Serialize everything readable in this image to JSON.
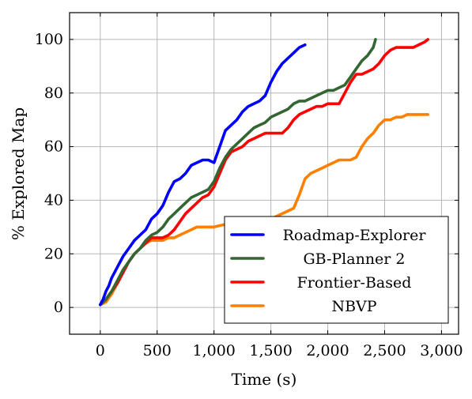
{
  "chart_data": {
    "type": "line",
    "title": "",
    "xlabel": "Time (s)",
    "ylabel": "% Explored Map",
    "xlim": [
      -270,
      3150
    ],
    "ylim": [
      -10,
      110
    ],
    "xticks": [
      0,
      500,
      1000,
      1500,
      2000,
      2500,
      3000
    ],
    "xtick_labels": [
      "0",
      "500",
      "1,000",
      "1,500",
      "2,000",
      "2,500",
      "3,000"
    ],
    "yticks": [
      0,
      20,
      40,
      60,
      80,
      100
    ],
    "ytick_labels": [
      "0",
      "20",
      "40",
      "60",
      "80",
      "100"
    ],
    "grid": true,
    "legend_position": "bottom-right",
    "series": [
      {
        "name": "Roadmap-Explorer",
        "color": "#0000ff",
        "x": [
          0,
          25,
          50,
          75,
          100,
          150,
          200,
          250,
          300,
          350,
          400,
          450,
          500,
          550,
          600,
          650,
          700,
          750,
          800,
          850,
          900,
          950,
          1000,
          1050,
          1100,
          1150,
          1200,
          1250,
          1300,
          1350,
          1400,
          1450,
          1500,
          1550,
          1600,
          1650,
          1700,
          1750,
          1800
        ],
        "y": [
          1,
          3,
          6,
          8,
          11,
          15,
          19,
          22,
          25,
          27,
          29,
          33,
          35,
          38,
          43,
          47,
          48,
          50,
          53,
          54,
          55,
          55,
          54,
          60,
          66,
          68,
          70,
          73,
          75,
          76,
          77,
          79,
          84,
          88,
          91,
          93,
          95,
          97,
          98
        ]
      },
      {
        "name": "GB-Planner 2",
        "color": "#336633",
        "x": [
          0,
          50,
          100,
          150,
          200,
          250,
          300,
          350,
          400,
          450,
          500,
          550,
          600,
          650,
          700,
          750,
          800,
          850,
          900,
          950,
          1000,
          1050,
          1100,
          1150,
          1200,
          1250,
          1300,
          1350,
          1400,
          1450,
          1500,
          1550,
          1600,
          1650,
          1700,
          1750,
          1800,
          1850,
          1900,
          1950,
          2000,
          2050,
          2100,
          2150,
          2200,
          2250,
          2300,
          2350,
          2400,
          2420
        ],
        "y": [
          1,
          3,
          6,
          10,
          14,
          17,
          20,
          22,
          25,
          27,
          28,
          30,
          33,
          35,
          37,
          39,
          41,
          42,
          43,
          44,
          47,
          52,
          56,
          59,
          61,
          63,
          65,
          67,
          68,
          69,
          71,
          72,
          73,
          74,
          76,
          77,
          77,
          78,
          79,
          80,
          81,
          81,
          82,
          83,
          86,
          89,
          92,
          94,
          97,
          100
        ]
      },
      {
        "name": "Frontier-Based",
        "color": "#ff0000",
        "x": [
          0,
          50,
          100,
          150,
          200,
          250,
          300,
          350,
          400,
          450,
          500,
          550,
          600,
          650,
          700,
          750,
          800,
          850,
          900,
          950,
          1000,
          1050,
          1100,
          1150,
          1200,
          1250,
          1300,
          1350,
          1400,
          1450,
          1500,
          1550,
          1600,
          1650,
          1700,
          1750,
          1800,
          1850,
          1900,
          1950,
          2000,
          2050,
          2100,
          2150,
          2200,
          2250,
          2300,
          2350,
          2400,
          2450,
          2500,
          2550,
          2600,
          2650,
          2700,
          2750,
          2800,
          2850,
          2880
        ],
        "y": [
          1,
          3,
          6,
          9,
          13,
          17,
          20,
          22,
          24,
          26,
          26,
          26,
          27,
          29,
          32,
          35,
          37,
          39,
          41,
          42,
          45,
          50,
          55,
          58,
          59,
          60,
          62,
          63,
          64,
          65,
          65,
          65,
          65,
          67,
          70,
          72,
          73,
          74,
          75,
          75,
          76,
          76,
          76,
          80,
          84,
          87,
          87,
          88,
          89,
          91,
          94,
          96,
          97,
          97,
          97,
          97,
          98,
          99,
          100
        ]
      },
      {
        "name": "NBVP",
        "color": "#ff8000",
        "x": [
          0,
          50,
          100,
          150,
          200,
          250,
          300,
          350,
          400,
          450,
          500,
          550,
          600,
          650,
          700,
          750,
          800,
          850,
          900,
          950,
          1000,
          1100,
          1200,
          1300,
          1400,
          1500,
          1550,
          1600,
          1650,
          1700,
          1750,
          1800,
          1850,
          1900,
          1950,
          2000,
          2050,
          2100,
          2150,
          2200,
          2250,
          2300,
          2350,
          2400,
          2450,
          2500,
          2550,
          2600,
          2650,
          2700,
          2750,
          2800,
          2850,
          2880
        ],
        "y": [
          1,
          2,
          5,
          9,
          13,
          17,
          20,
          22,
          24,
          25,
          25,
          25,
          26,
          26,
          27,
          28,
          29,
          30,
          30,
          30,
          30,
          31,
          31,
          31,
          32,
          33,
          34,
          35,
          36,
          37,
          42,
          48,
          50,
          51,
          52,
          53,
          54,
          55,
          55,
          55,
          56,
          60,
          63,
          65,
          68,
          70,
          70,
          71,
          71,
          72,
          72,
          72,
          72,
          72
        ]
      }
    ]
  }
}
